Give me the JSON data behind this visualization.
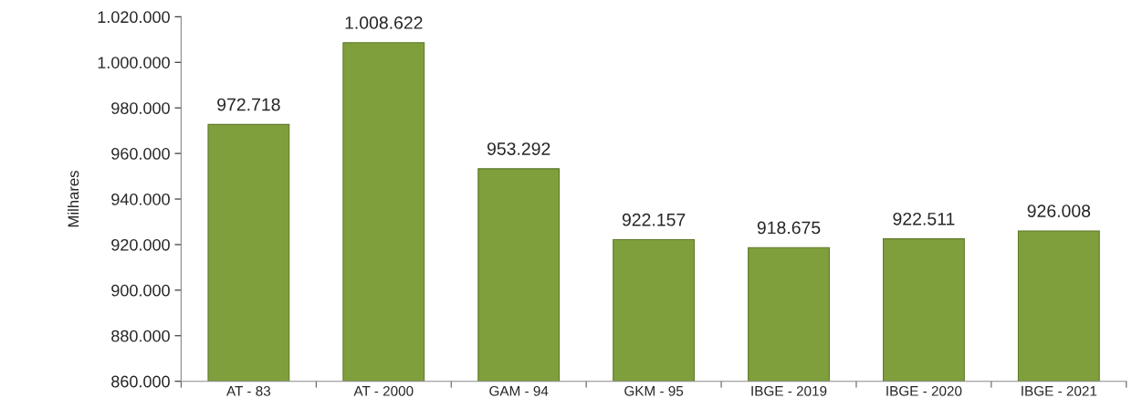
{
  "chart_data": {
    "type": "bar",
    "ylabel": "Milhares",
    "categories": [
      "AT - 83",
      "AT - 2000",
      "GAM - 94",
      "GKM - 95",
      "IBGE - 2019",
      "IBGE - 2020",
      "IBGE - 2021"
    ],
    "values": [
      972718,
      1008622,
      953292,
      922157,
      918675,
      922511,
      926008
    ],
    "value_labels": [
      "972.718",
      "1.008.622",
      "953.292",
      "922.157",
      "918.675",
      "922.511",
      "926.008"
    ],
    "color": "#7f9f3c",
    "ylim": [
      860000,
      1020000
    ],
    "yticks": [
      {
        "value": 860000,
        "label": "860.000"
      },
      {
        "value": 880000,
        "label": "880.000"
      },
      {
        "value": 900000,
        "label": "900.000"
      },
      {
        "value": 920000,
        "label": "920.000"
      },
      {
        "value": 940000,
        "label": "940.000"
      },
      {
        "value": 960000,
        "label": "960.000"
      },
      {
        "value": 980000,
        "label": "980.000"
      },
      {
        "value": 1000000,
        "label": "1.000.000"
      },
      {
        "value": 1020000,
        "label": "1.020.000"
      }
    ],
    "grid": false,
    "legend": false
  }
}
